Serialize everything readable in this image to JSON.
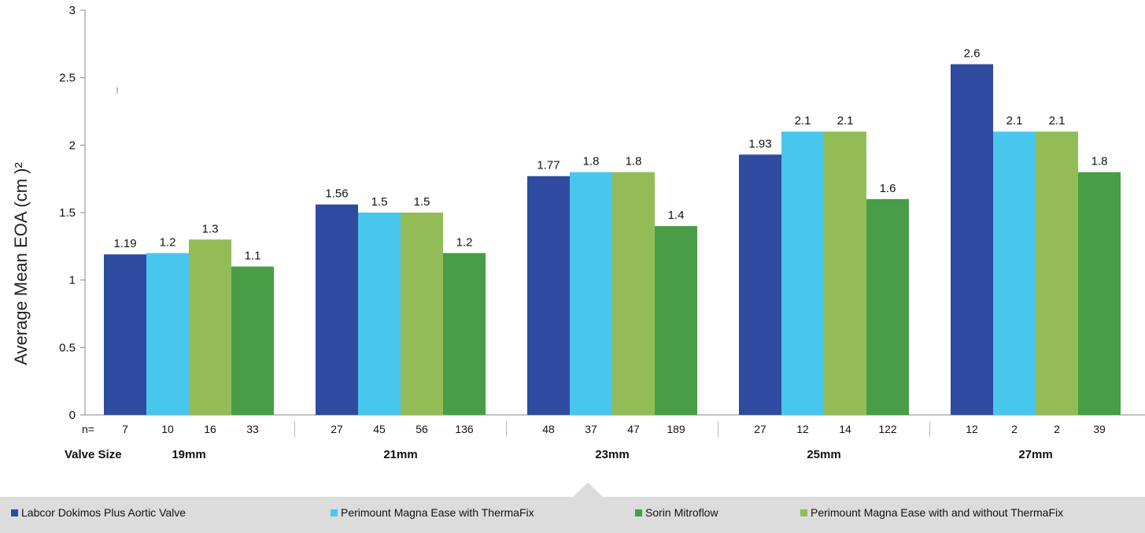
{
  "chart_data": {
    "type": "bar",
    "title": "",
    "ylabel": "Average Mean EOA (cm )²",
    "ylim": [
      0,
      3
    ],
    "yticks": [
      "0",
      "0.5",
      "1",
      "1.5",
      "2",
      "2.5",
      "3"
    ],
    "grid": false,
    "legend_position": "bottom",
    "n_prefix": "n=",
    "category_axis_label": "Valve Size",
    "categories": [
      "19mm",
      "21mm",
      "23mm",
      "25mm",
      "27mm"
    ],
    "series": [
      {
        "name": "Labcor Dokimos Plus Aortic Valve",
        "color": "#2e4b9f",
        "values": [
          1.19,
          1.56,
          1.77,
          1.93,
          2.6
        ],
        "labels": [
          "1.19",
          "1.56",
          "1.77",
          "1.93",
          "2.6"
        ],
        "n": [
          "7",
          "27",
          "48",
          "27",
          "12"
        ]
      },
      {
        "name": "Perimount Magna Ease with ThermaFix",
        "color": "#48c6ee",
        "values": [
          1.2,
          1.5,
          1.8,
          2.1,
          2.1
        ],
        "labels": [
          "1.2",
          "1.5",
          "1.8",
          "2.1",
          "2.1"
        ],
        "n": [
          "10",
          "45",
          "37",
          "12",
          "2"
        ]
      },
      {
        "name": "Perimount Magna Ease with and without ThermaFix",
        "color": "#92bd56",
        "values": [
          1.3,
          1.5,
          1.8,
          2.1,
          2.1
        ],
        "labels": [
          "1.3",
          "1.5",
          "1.8",
          "2.1",
          "2.1"
        ],
        "n": [
          "16",
          "56",
          "47",
          "14",
          "2"
        ]
      },
      {
        "name": "Sorin Mitroflow",
        "color": "#489d46",
        "values": [
          1.1,
          1.2,
          1.4,
          1.6,
          1.8
        ],
        "labels": [
          "1.1",
          "1.2",
          "1.4",
          "1.6",
          "1.8"
        ],
        "n": [
          "33",
          "136",
          "189",
          "122",
          "39"
        ]
      }
    ],
    "legend_order": [
      0,
      1,
      3,
      2
    ]
  }
}
